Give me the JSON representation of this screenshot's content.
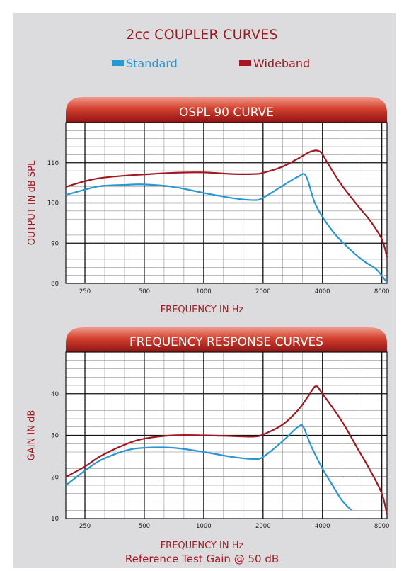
{
  "header": {
    "title": "2cc COUPLER CURVES",
    "legend": [
      {
        "label": "Standard",
        "color": "#2a96d4"
      },
      {
        "label": "Wideband",
        "color": "#a31820"
      }
    ]
  },
  "footer_note": "Reference Test Gain @ 50 dB",
  "chart_data": [
    {
      "type": "line",
      "title": "OSPL 90 CURVE",
      "xlabel": "FREQUENCY IN Hz",
      "ylabel": "OUTPUT IN dB SPL",
      "x_scale": "log",
      "xlim": [
        200,
        8500
      ],
      "ylim": [
        80,
        120
      ],
      "x_ticks": [
        250,
        500,
        1000,
        2000,
        4000,
        8000
      ],
      "x_tick_labels": [
        "250",
        "500",
        "1000",
        "2000",
        "4000",
        "8000"
      ],
      "y_ticks": [
        80,
        90,
        100,
        110
      ],
      "y_tick_labels": [
        "80",
        "90",
        "100",
        "110"
      ],
      "grid": true,
      "series": [
        {
          "name": "Standard",
          "color": "#2a96d4",
          "x": [
            200,
            250,
            300,
            400,
            500,
            700,
            1000,
            1400,
            1800,
            2000,
            2500,
            3000,
            3300,
            3700,
            4500,
            5500,
            6500,
            7500,
            8500
          ],
          "y": [
            102.0,
            103.3,
            104.2,
            104.5,
            104.6,
            104.0,
            102.5,
            101.2,
            100.7,
            101.3,
            104.2,
            106.5,
            106.7,
            99.5,
            93.0,
            88.5,
            85.5,
            83.5,
            80.2
          ]
        },
        {
          "name": "Wideband",
          "color": "#a31820",
          "x": [
            200,
            250,
            300,
            400,
            500,
            700,
            1000,
            1400,
            1800,
            2000,
            2500,
            3000,
            3500,
            3900,
            4300,
            5000,
            6000,
            7000,
            8000,
            8500
          ],
          "y": [
            104.0,
            105.4,
            106.2,
            106.8,
            107.1,
            107.5,
            107.6,
            107.2,
            107.2,
            107.5,
            109.0,
            111.0,
            112.8,
            112.7,
            109.5,
            104.5,
            99.5,
            95.5,
            91.0,
            86.5
          ]
        }
      ]
    },
    {
      "type": "line",
      "title": "FREQUENCY RESPONSE CURVES",
      "xlabel": "FREQUENCY IN Hz",
      "ylabel": "GAIN IN dB",
      "x_scale": "log",
      "xlim": [
        200,
        8500
      ],
      "ylim": [
        10,
        50
      ],
      "x_ticks": [
        250,
        500,
        1000,
        2000,
        4000,
        8000
      ],
      "x_tick_labels": [
        "250",
        "500",
        "1000",
        "2000",
        "4000",
        "8000"
      ],
      "y_ticks": [
        10,
        20,
        30,
        40
      ],
      "y_tick_labels": [
        "10",
        "20",
        "30",
        "40"
      ],
      "grid": true,
      "series": [
        {
          "name": "Standard",
          "color": "#2a96d4",
          "x": [
            200,
            250,
            300,
            400,
            500,
            700,
            1000,
            1400,
            1800,
            2000,
            2500,
            3000,
            3200,
            3500,
            4000,
            4500,
            5000,
            5600
          ],
          "y": [
            18.0,
            21.5,
            24.0,
            26.3,
            27.0,
            27.0,
            26.0,
            24.8,
            24.3,
            24.8,
            28.5,
            32.0,
            32.0,
            27.5,
            22.0,
            18.0,
            14.5,
            12.0
          ]
        },
        {
          "name": "Wideband",
          "color": "#a31820",
          "x": [
            200,
            250,
            300,
            400,
            500,
            700,
            1000,
            1400,
            1800,
            2000,
            2500,
            3000,
            3400,
            3700,
            4000,
            5000,
            6000,
            7000,
            8000,
            8500
          ],
          "y": [
            20.0,
            22.5,
            25.0,
            27.8,
            29.2,
            30.0,
            30.0,
            29.8,
            29.7,
            30.2,
            32.5,
            36.0,
            39.5,
            41.8,
            40.0,
            33.5,
            27.0,
            21.5,
            16.0,
            11.0
          ]
        }
      ]
    }
  ]
}
